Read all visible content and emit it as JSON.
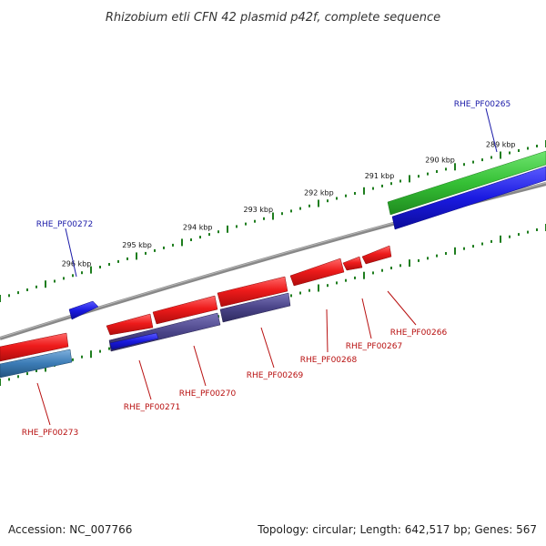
{
  "title": "Rhizobium etli CFN 42 plasmid p42f, complete sequence",
  "footer": {
    "accession": "Accession: NC_007766",
    "summary": "Topology: circular; Length: 642,517 bp; Genes: 567"
  },
  "scale": {
    "tick_color": "#1e7d1e",
    "ticks": [
      {
        "label": "296 kbp",
        "kbp": 296
      },
      {
        "label": "295 kbp",
        "kbp": 295
      },
      {
        "label": "294 kbp",
        "kbp": 294
      },
      {
        "label": "293 kbp",
        "kbp": 293
      },
      {
        "label": "292 kbp",
        "kbp": 292
      },
      {
        "label": "291 kbp",
        "kbp": 291
      },
      {
        "label": "290 kbp",
        "kbp": 290
      },
      {
        "label": "289 kbp",
        "kbp": 289
      }
    ]
  },
  "colors": {
    "backbone": "#808080",
    "forward_cds": "#2f2fe0",
    "forward_gene": "#3cc83c",
    "reverse_cds": "#e81c1c",
    "reverse_gene": "#4a4488",
    "reverse_gene_alt": "#3b7bb5",
    "forward_label": "#1a1aa8",
    "reverse_label": "#b81010"
  },
  "labels": {
    "RHE_PF00265": "RHE_PF00265",
    "RHE_PF00266": "RHE_PF00266",
    "RHE_PF00267": "RHE_PF00267",
    "RHE_PF00268": "RHE_PF00268",
    "RHE_PF00269": "RHE_PF00269",
    "RHE_PF00270": "RHE_PF00270",
    "RHE_PF00271": "RHE_PF00271",
    "RHE_PF00272": "RHE_PF00272",
    "RHE_PF00273": "RHE_PF00273"
  }
}
